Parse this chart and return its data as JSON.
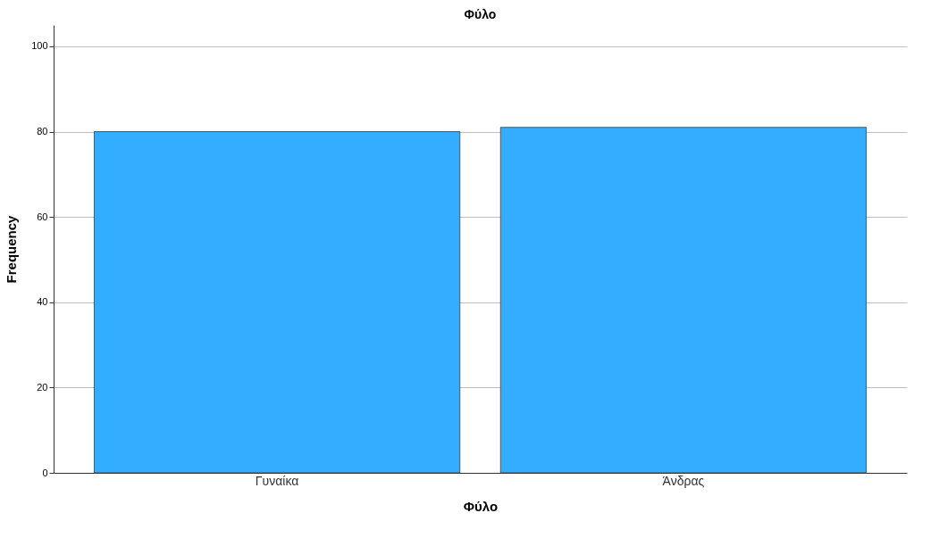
{
  "chart_data": {
    "type": "bar",
    "title": "Φύλο",
    "xlabel": "Φύλο",
    "ylabel": "Frequency",
    "categories": [
      "Γυναίκα",
      "Άνδρας"
    ],
    "values": [
      80,
      81
    ],
    "color": "#33adff",
    "ylim": [
      0,
      105
    ],
    "yticks": [
      0,
      20,
      40,
      60,
      80,
      100
    ],
    "grid": "y"
  }
}
